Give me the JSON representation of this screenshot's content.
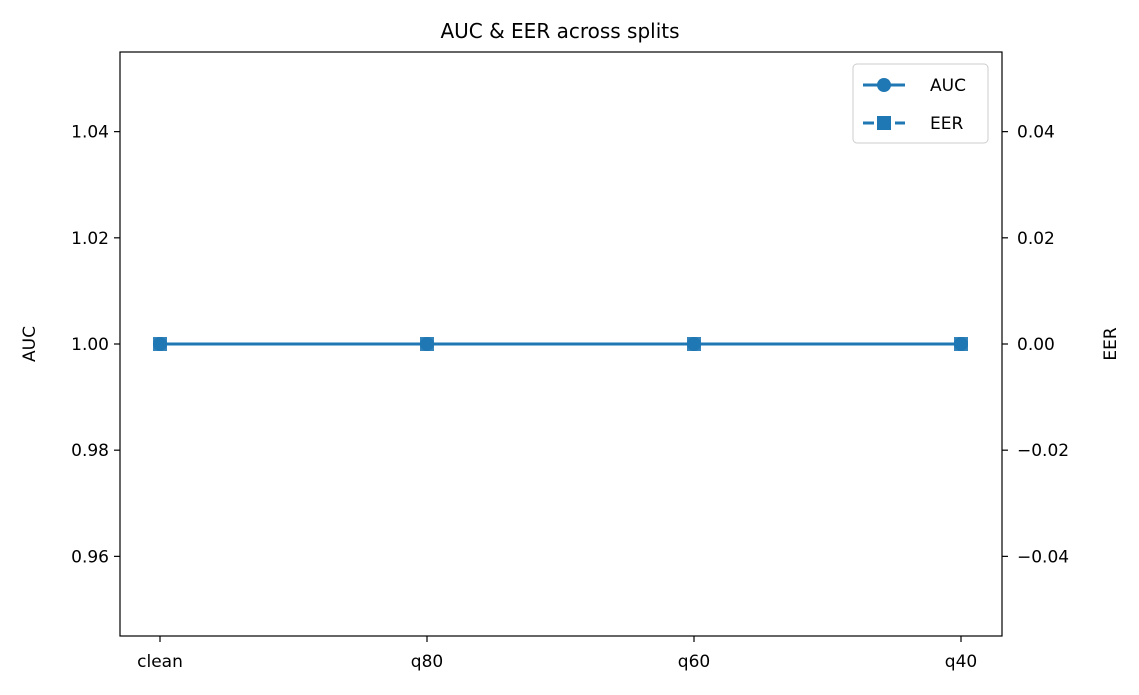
{
  "chart_data": {
    "type": "line",
    "title": "AUC & EER across splits",
    "categories": [
      "clean",
      "q80",
      "q60",
      "q40"
    ],
    "y_left": {
      "label": "AUC",
      "lim": [
        0.945,
        1.055
      ],
      "ticks": [
        0.96,
        0.98,
        1.0,
        1.02,
        1.04
      ],
      "tick_labels": [
        "0.96",
        "0.98",
        "1.00",
        "1.02",
        "1.04"
      ]
    },
    "y_right": {
      "label": "EER",
      "lim": [
        -0.055,
        0.055
      ],
      "ticks": [
        -0.04,
        -0.02,
        0.0,
        0.02,
        0.04
      ],
      "tick_labels": [
        "−0.04",
        "−0.02",
        "0.00",
        "0.02",
        "0.04"
      ]
    },
    "series": [
      {
        "name": "AUC",
        "axis": "left",
        "values": [
          1.0,
          1.0,
          1.0,
          1.0
        ],
        "marker": "circle",
        "linestyle": "solid",
        "color": "#1f77b4"
      },
      {
        "name": "EER",
        "axis": "right",
        "values": [
          0.0,
          0.0,
          0.0,
          0.0
        ],
        "marker": "square",
        "linestyle": "dashed",
        "color": "#1f77b4"
      }
    ],
    "legend": {
      "position": "top-right"
    },
    "grid": false
  }
}
